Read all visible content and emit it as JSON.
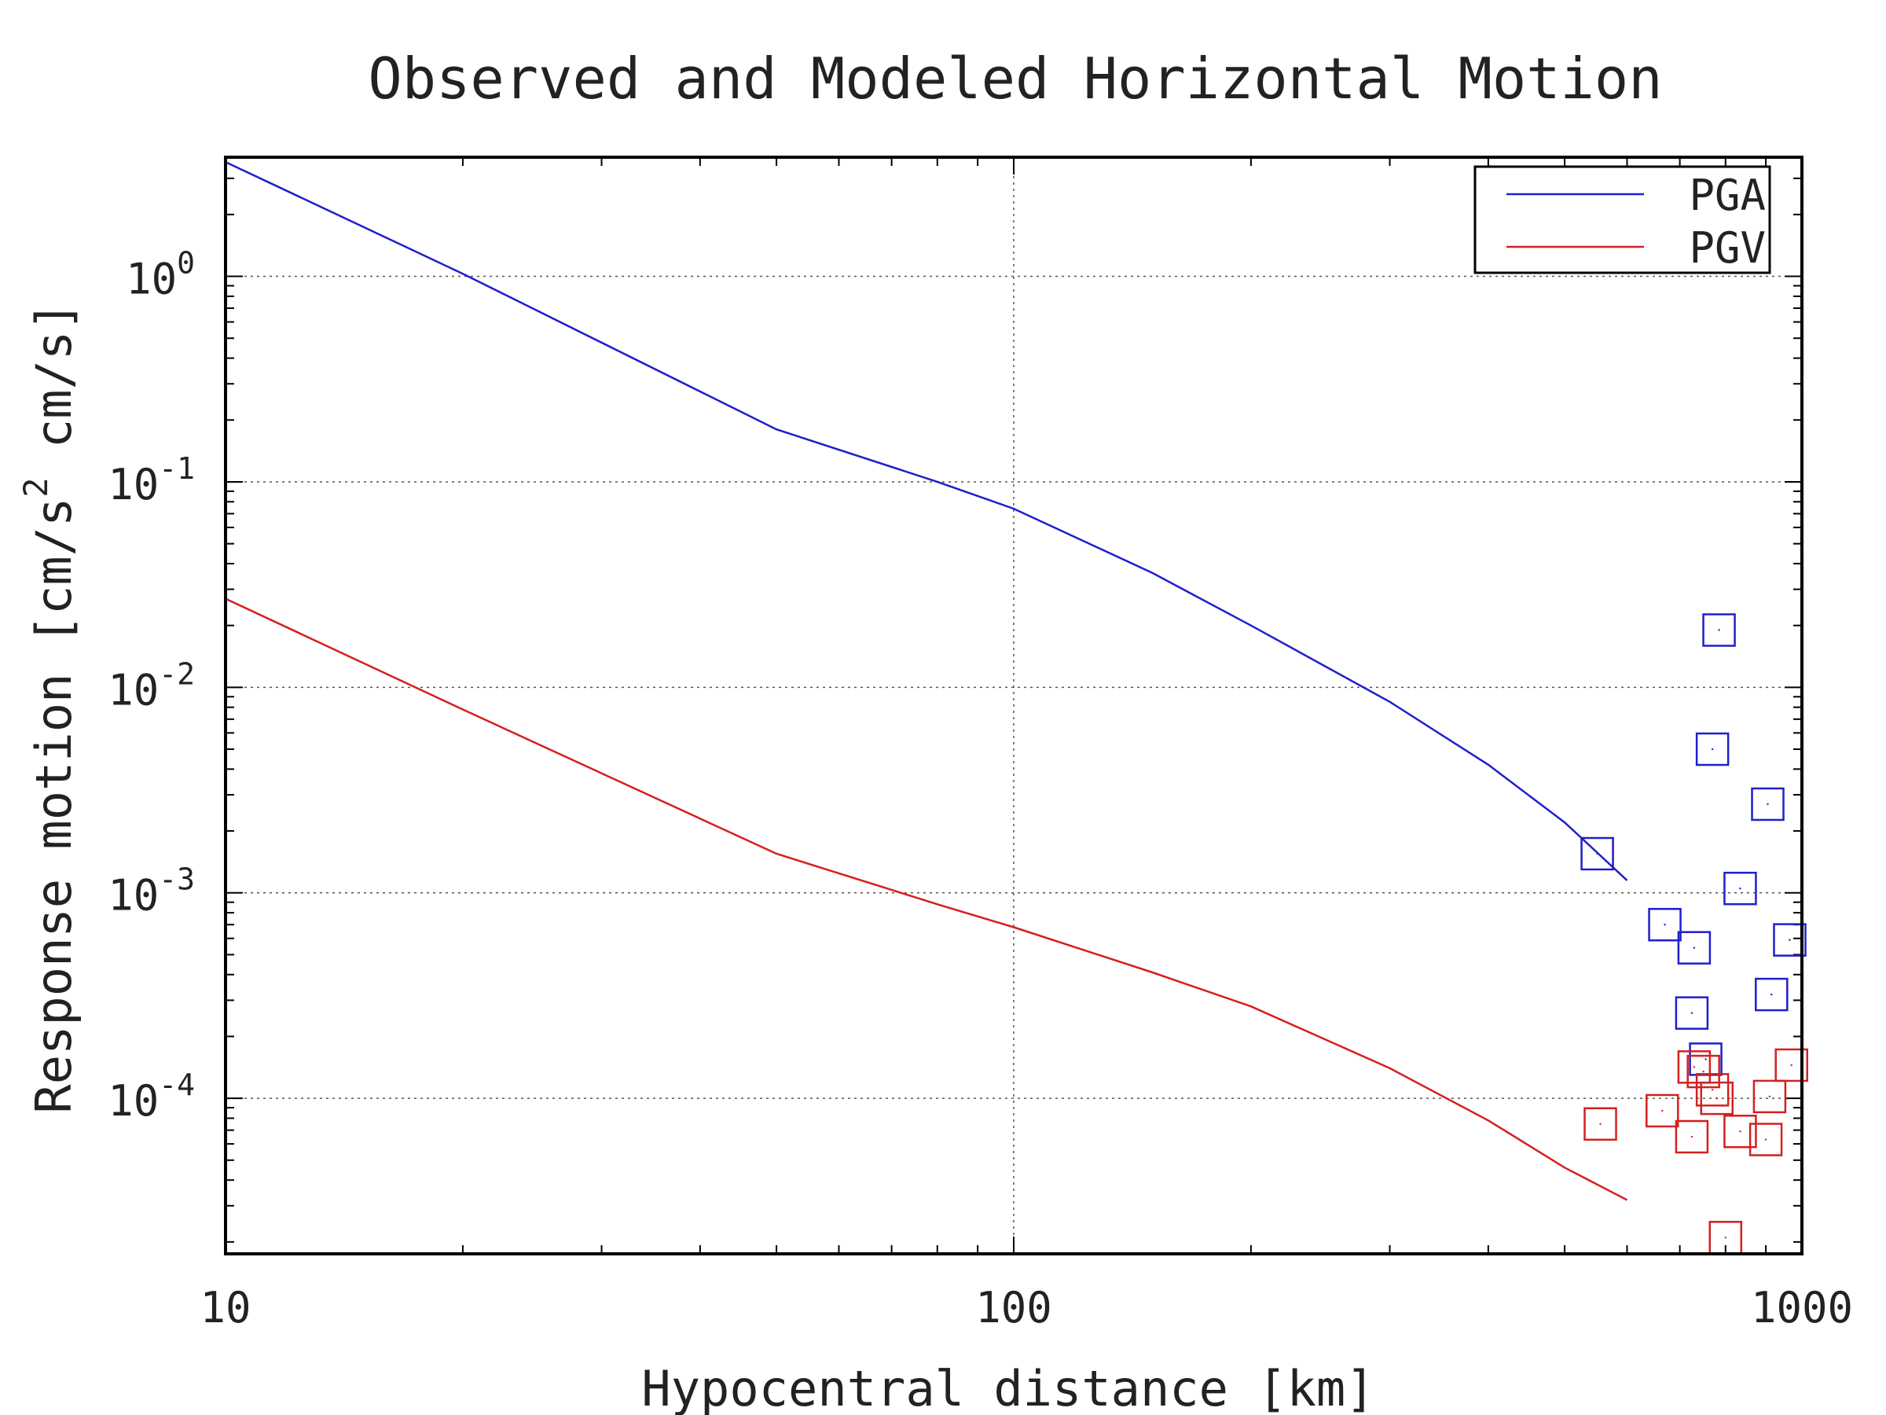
{
  "chart_data": {
    "type": "line",
    "title": "Observed and Modeled Horizontal Motion",
    "xlabel": "Hypocentral distance [km]",
    "ylabel": {
      "prefix": "Response motion  [cm/s",
      "superscript": "2",
      "suffix": "  cm/s]"
    },
    "x_scale": "log",
    "y_scale": "log",
    "xlim": [
      10,
      1000
    ],
    "ylim": [
      1.75e-05,
      3.8
    ],
    "grid": true,
    "legend_position": "top-right",
    "x_ticks": [
      {
        "value": 10,
        "label": "10"
      },
      {
        "value": 100,
        "label": "100"
      },
      {
        "value": 1000,
        "label": "1000"
      }
    ],
    "y_ticks": [
      {
        "value": 1,
        "base": "10",
        "exp": "0"
      },
      {
        "value": 0.1,
        "base": "10",
        "exp": "-1"
      },
      {
        "value": 0.01,
        "base": "10",
        "exp": "-2"
      },
      {
        "value": 0.001,
        "base": "10",
        "exp": "-3"
      },
      {
        "value": 0.0001,
        "base": "10",
        "exp": "-4"
      }
    ],
    "series": [
      {
        "name": "PGA",
        "color": "#1f1fcc",
        "x": [
          10,
          20,
          50,
          80,
          100,
          150,
          200,
          300,
          400,
          500,
          600
        ],
        "y": [
          3.6,
          1.03,
          0.18,
          0.1,
          0.074,
          0.036,
          0.02,
          0.0085,
          0.0042,
          0.0022,
          0.00115
        ]
      },
      {
        "name": "PGV",
        "color": "#d42020",
        "x": [
          10,
          20,
          50,
          80,
          100,
          150,
          200,
          300,
          400,
          500,
          600
        ],
        "y": [
          0.027,
          0.0078,
          0.00155,
          0.00088,
          0.00068,
          0.00041,
          0.00028,
          0.00014,
          7.8e-05,
          4.6e-05,
          3.2e-05
        ]
      }
    ],
    "observed": [
      {
        "name": "PGA observed",
        "color": "#1f1fcc",
        "x": [
          550,
          670,
          730,
          725,
          755,
          770,
          785,
          835,
          905,
          915,
          965
        ],
        "y": [
          0.00155,
          0.0007,
          0.00054,
          0.00026,
          0.000155,
          0.005,
          0.019,
          0.00105,
          0.0027,
          0.00032,
          0.00059
        ]
      },
      {
        "name": "PGV observed",
        "color": "#d42020",
        "x": [
          555,
          665,
          725,
          730,
          750,
          770,
          780,
          800,
          835,
          900,
          910,
          970
        ],
        "y": [
          7.5e-05,
          8.7e-05,
          6.5e-05,
          0.000142,
          0.000135,
          0.00011,
          0.0001,
          2.1e-05,
          6.9e-05,
          6.3e-05,
          0.000102,
          0.000145
        ]
      }
    ]
  }
}
